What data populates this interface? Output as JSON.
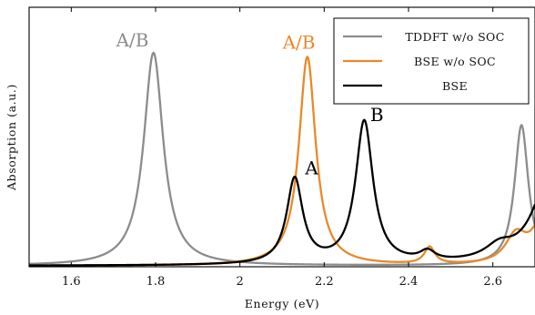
{
  "chart_data": {
    "type": "line",
    "xlabel": "Energy (eV)",
    "ylabel": "Absorption (a.u.)",
    "xlim": [
      1.5,
      2.7
    ],
    "ylim": [
      0,
      1.2
    ],
    "x_ticks": [
      "1.6",
      "1.8",
      "2",
      "2.2",
      "2.4",
      "2.6"
    ],
    "grid": false,
    "legend_position": "top-right",
    "series": [
      {
        "name": "TDDFT w/o SOC",
        "color": "#8c8c8c",
        "peaks": [
          {
            "center": 1.795,
            "width": 0.028,
            "height": 1.0
          },
          {
            "center": 2.668,
            "width": 0.02,
            "height": 0.66
          }
        ]
      },
      {
        "name": "BSE w/o SOC",
        "color": "#e8892b",
        "peaks": [
          {
            "center": 2.16,
            "width": 0.024,
            "height": 0.98
          },
          {
            "center": 2.45,
            "width": 0.015,
            "height": 0.08
          },
          {
            "center": 2.655,
            "width": 0.03,
            "height": 0.13
          },
          {
            "center": 2.72,
            "width": 0.03,
            "height": 0.22
          }
        ]
      },
      {
        "name": "BSE",
        "color": "#000000",
        "peaks": [
          {
            "center": 2.13,
            "width": 0.023,
            "height": 0.4
          },
          {
            "center": 2.295,
            "width": 0.025,
            "height": 0.67
          },
          {
            "center": 2.445,
            "width": 0.022,
            "height": 0.045
          },
          {
            "center": 2.615,
            "width": 0.04,
            "height": 0.06
          },
          {
            "center": 2.74,
            "width": 0.05,
            "height": 0.45
          }
        ]
      }
    ],
    "annotations": [
      {
        "text": "A/B",
        "x": 1.745,
        "y": 1.03,
        "color": "#8c8c8c"
      },
      {
        "text": "A/B",
        "x": 2.14,
        "y": 1.02,
        "color": "#e8892b"
      },
      {
        "text": "A",
        "x": 2.17,
        "y": 0.43,
        "color": "#000000"
      },
      {
        "text": "B",
        "x": 2.325,
        "y": 0.68,
        "color": "#000000"
      }
    ]
  }
}
